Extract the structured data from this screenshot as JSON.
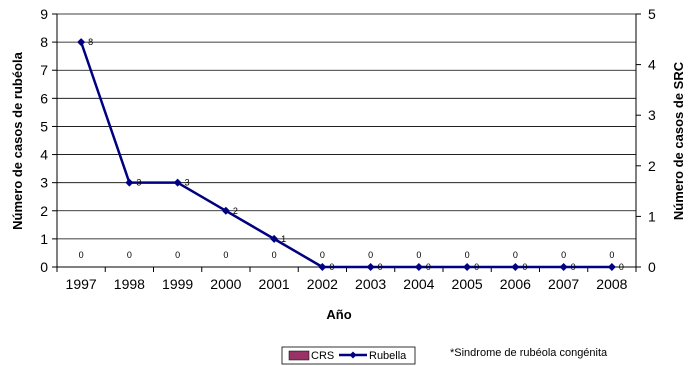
{
  "chart_data": {
    "type": "line",
    "categories": [
      "1997",
      "1998",
      "1999",
      "2000",
      "2001",
      "2002",
      "2003",
      "2004",
      "2005",
      "2006",
      "2007",
      "2008"
    ],
    "series": [
      {
        "name": "CRS",
        "type": "bar",
        "axis": "right",
        "color": "#993366",
        "values": [
          0,
          0,
          0,
          0,
          0,
          0,
          0,
          0,
          0,
          0,
          0,
          0
        ]
      },
      {
        "name": "Rubella",
        "type": "line",
        "axis": "left",
        "color": "#000080",
        "values": [
          8,
          3,
          3,
          2,
          1,
          0,
          0,
          0,
          0,
          0,
          0,
          0
        ]
      }
    ],
    "xlabel": "Año",
    "ylabel": "Número de casos de rubéola",
    "y2label": "Número de casos de SRC",
    "ylim": [
      0,
      9
    ],
    "y2lim": [
      0,
      5
    ],
    "yticks": [
      "0",
      "1",
      "2",
      "3",
      "4",
      "5",
      "6",
      "7",
      "8",
      "9"
    ],
    "y2ticks": [
      "0",
      "1",
      "2",
      "3",
      "4",
      "5"
    ],
    "grid": true,
    "legend_position": "bottom",
    "footnote": "*Sindrome de rubéola congénita"
  }
}
